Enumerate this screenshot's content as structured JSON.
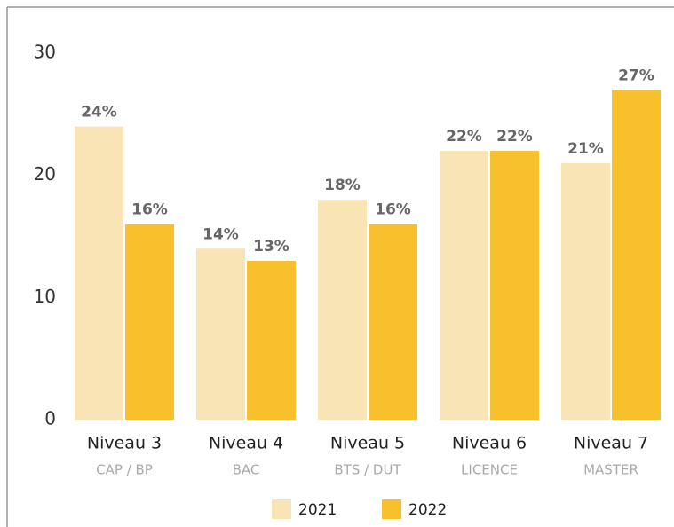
{
  "chart_data": {
    "type": "bar",
    "categories": [
      "Niveau 3",
      "Niveau 4",
      "Niveau 5",
      "Niveau 6",
      "Niveau 7"
    ],
    "subcategories": [
      "CAP / BP",
      "BAC",
      "BTS / DUT",
      "LICENCE",
      "MASTER"
    ],
    "series": [
      {
        "name": "2021",
        "color": "#f8e4b4",
        "values": [
          24,
          14,
          18,
          22,
          21
        ],
        "value_labels": [
          "24%",
          "14%",
          "18%",
          "22%",
          "21%"
        ]
      },
      {
        "name": "2022",
        "color": "#f9c02d",
        "values": [
          16,
          13,
          16,
          22,
          27
        ],
        "value_labels": [
          "16%",
          "13%",
          "16%",
          "22%",
          "27%"
        ]
      }
    ],
    "ylim": [
      0,
      30
    ],
    "yticks": [
      0,
      10,
      20,
      30
    ],
    "grid": false,
    "legend": "bottom"
  }
}
